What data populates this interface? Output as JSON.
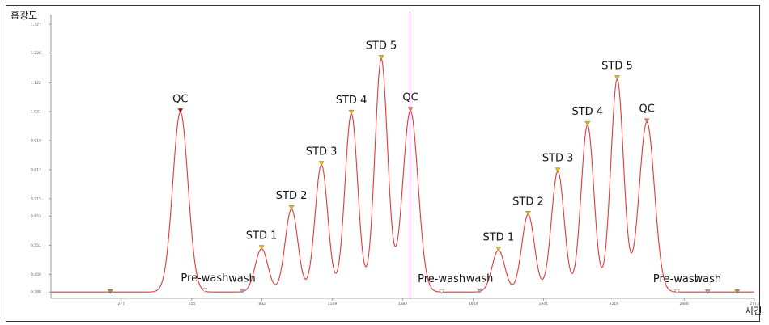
{
  "chart_data": {
    "type": "line",
    "ylabel": "흡광도",
    "xlabel": "시간",
    "x_ticks": [
      "277",
      "555",
      "832",
      "1109",
      "1387",
      "1664",
      "1941",
      "2219",
      "2496",
      "2773"
    ],
    "y_ticks": [
      "0.388",
      "0.450",
      "0.551",
      "0.653",
      "0.715",
      "0.817",
      "0.919",
      "1.021",
      "1.122",
      "1.226",
      "1.327"
    ],
    "ylim": [
      0.38,
      1.35
    ],
    "xlim": [
      0,
      2773
    ],
    "grid": false,
    "colors": {
      "trace": "#e23a3a",
      "marker_line": "#ee55ee",
      "axis": "#555555"
    },
    "cursor_x": 1415,
    "series": [
      {
        "baseline": 0.388,
        "peaks": [
          {
            "label": "QC",
            "x": 510,
            "y": 1.02,
            "sigma": 30,
            "marker_color": "#cc0000"
          },
          {
            "label": "STD 1",
            "x": 830,
            "y": 0.54,
            "sigma": 25,
            "marker_color": "#e6c200"
          },
          {
            "label": "STD 2",
            "x": 948,
            "y": 0.68,
            "sigma": 25,
            "marker_color": "#e6c200"
          },
          {
            "label": "STD 3",
            "x": 1066,
            "y": 0.835,
            "sigma": 25,
            "marker_color": "#e6c200"
          },
          {
            "label": "STD 4",
            "x": 1184,
            "y": 1.015,
            "sigma": 25,
            "marker_color": "#e6c200"
          },
          {
            "label": "STD 5",
            "x": 1302,
            "y": 1.207,
            "sigma": 25,
            "marker_color": "#e6c200"
          },
          {
            "label": "QC",
            "x": 1417,
            "y": 1.025,
            "sigma": 30,
            "marker_color": "#e07060"
          },
          {
            "label": "STD 1",
            "x": 1764,
            "y": 0.535,
            "sigma": 25,
            "marker_color": "#e6c200"
          },
          {
            "label": "STD 2",
            "x": 1881,
            "y": 0.66,
            "sigma": 25,
            "marker_color": "#e6c200"
          },
          {
            "label": "STD 3",
            "x": 1998,
            "y": 0.812,
            "sigma": 25,
            "marker_color": "#e6c200"
          },
          {
            "label": "STD 4",
            "x": 2115,
            "y": 0.975,
            "sigma": 25,
            "marker_color": "#e6c200"
          },
          {
            "label": "STD 5",
            "x": 2232,
            "y": 1.136,
            "sigma": 25,
            "marker_color": "#e6c200"
          },
          {
            "label": "QC",
            "x": 2349,
            "y": 0.985,
            "sigma": 30,
            "marker_color": "#e07060"
          }
        ],
        "events": [
          {
            "label": "",
            "x": 234,
            "marker_color": "#c08040"
          },
          {
            "label": "Pre-wash",
            "x": 606,
            "marker_color": "#ffffff"
          },
          {
            "label": "wash",
            "x": 753,
            "marker_color": "#b8a0d8"
          },
          {
            "label": "Pre-wash",
            "x": 1540,
            "marker_color": "#ffffff"
          },
          {
            "label": "wash",
            "x": 1690,
            "marker_color": "#b8a0d8"
          },
          {
            "label": "Pre-wash",
            "x": 2468,
            "marker_color": "#ffffff"
          },
          {
            "label": "wash",
            "x": 2589,
            "marker_color": "#b8a0d8"
          },
          {
            "label": "",
            "x": 2705,
            "marker_color": "#c08040"
          }
        ]
      }
    ]
  }
}
